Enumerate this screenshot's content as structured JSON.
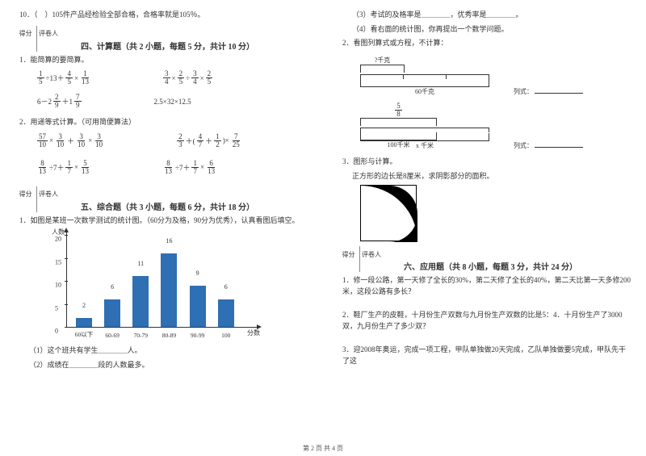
{
  "left": {
    "q10": "10．（　）105件产品经检验全部合格，合格率就是105％。",
    "score_labels": [
      "得分",
      "评卷人"
    ],
    "sec4_title": "四、计算题（共 2 小题，每题 5 分，共计 10 分）",
    "sec4_q1": "1．能简算的要简算。",
    "expr1a_parts": [
      "1",
      "5",
      "÷13＋",
      "4",
      "5",
      "×",
      "1",
      "13"
    ],
    "expr1b_parts": [
      "3",
      "4",
      "×",
      "2",
      "5",
      "÷",
      "3",
      "4",
      "×",
      "2",
      "5"
    ],
    "expr1c_parts": [
      "6－2",
      "2",
      "9",
      "＋1",
      "7",
      "9"
    ],
    "expr1d": "2.5×32×12.5",
    "sec4_q2": "2．用递等式计算。（可用简便算法）",
    "expr2a_parts": [
      "57",
      "10",
      "×",
      "3",
      "10",
      "＋",
      "3",
      "10",
      "×",
      "3",
      "10"
    ],
    "expr2b_parts": [
      "2",
      "3",
      "＋(",
      "4",
      "7",
      "＋",
      "1",
      "2",
      ")×",
      "7",
      "25"
    ],
    "expr2c_parts": [
      "8",
      "13",
      "÷7＋",
      "1",
      "7",
      "×",
      "5",
      "13"
    ],
    "expr2d_parts": [
      "8",
      "13",
      "÷7＋",
      "1",
      "7",
      "×",
      "6",
      "13"
    ],
    "sec5_title": "五、综合题（共 3 小题，每题 6 分，共计 18 分）",
    "sec5_q1": "1．如图是某班一次数学测试的统计图。（60分为及格，90分为优秀），认真看图后填空。",
    "chart": {
      "y_label": "人数",
      "x_label": "分数",
      "y_max": 20,
      "y_step": 5,
      "categories": [
        "60以下",
        "60-69",
        "70-79",
        "80-89",
        "90-99",
        "100"
      ],
      "values": [
        2,
        6,
        11,
        16,
        9,
        6
      ],
      "bar_color": "#2f6fb3"
    },
    "sec5_sub1": "（1）这个班共有学生＿＿＿＿人。",
    "sec5_sub2": "（2）成绩在＿＿＿＿段的人数最多。"
  },
  "right": {
    "sec5_sub3": "（3）考试的及格率是＿＿＿＿，优秀率是＿＿＿＿。",
    "sec5_sub4": "（4）看右面的统计图，你再提出一个数学问题。",
    "sec5_q2": "2．看图列算式或方程，不计算：",
    "diag1_top": "?千克",
    "diag1_bottom": "60千克",
    "diag1_label": "列式：",
    "diag2_top_frac": [
      "5",
      "8"
    ],
    "diag2_bottom1": "100千米",
    "diag2_bottom2": "x 千米",
    "diag2_label": "列式：",
    "sec5_q3": "3．图形与计算。",
    "sec5_q3_text": "正方形的边长是8厘米，求阴影部分的面积。",
    "sec6_title": "六、应用题（共 8 小题，每题 3 分，共计 24 分）",
    "sec6_q1": "1．修一段公路，第一天修了全长的30%，第二天修了全长的40%，第二天比第一天多修200米，这段公路有多长？",
    "sec6_q2": "2．鞋厂生产的皮鞋，十月份生产双数与九月份生产双数的比是5：4．十月份生产了3000双，九月份生产了多少双？",
    "sec6_q3": "3．迎2008年奥运，完成一项工程，甲队单独做20天完成，乙队单独做要5完成，甲队先干了这"
  },
  "footer": "第 2 页 共 4 页"
}
